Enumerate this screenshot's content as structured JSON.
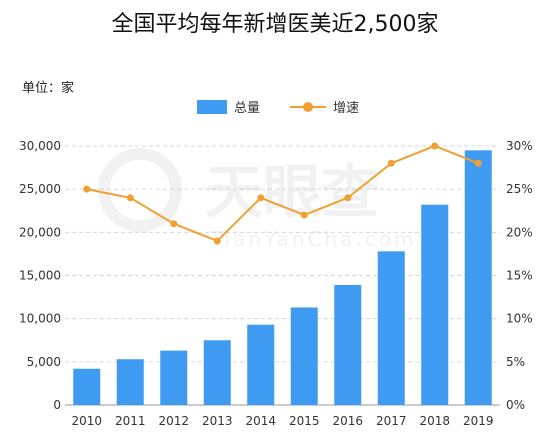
{
  "chart_data": {
    "type": "bar+line",
    "title": "全国平均每年新增医美近2,500家",
    "unit_label": "单位：家",
    "categories": [
      "2010",
      "2011",
      "2012",
      "2013",
      "2014",
      "2015",
      "2016",
      "2017",
      "2018",
      "2019"
    ],
    "series": [
      {
        "name": "总量",
        "type": "bar",
        "axis": "left",
        "color": "#3f9bf2",
        "values": [
          4200,
          5300,
          6300,
          7500,
          9300,
          11300,
          13900,
          17800,
          23200,
          29500
        ]
      },
      {
        "name": "增速",
        "type": "line",
        "axis": "right",
        "color": "#f0a030",
        "values": [
          25,
          24,
          21,
          19,
          24,
          22,
          24,
          28,
          30,
          28
        ]
      }
    ],
    "left_axis": {
      "min": 0,
      "max": 30000,
      "ticks": [
        "0",
        "5,000",
        "10,000",
        "15,000",
        "20,000",
        "25,000",
        "30,000"
      ]
    },
    "right_axis": {
      "min": 0,
      "max": 30,
      "ticks": [
        "0%",
        "5%",
        "10%",
        "15%",
        "20%",
        "25%",
        "30%"
      ]
    },
    "grid": "horizontal-dashed",
    "legend": "top-center",
    "watermark": {
      "main": "天眼查",
      "sub": "TianYanCha.com"
    }
  }
}
